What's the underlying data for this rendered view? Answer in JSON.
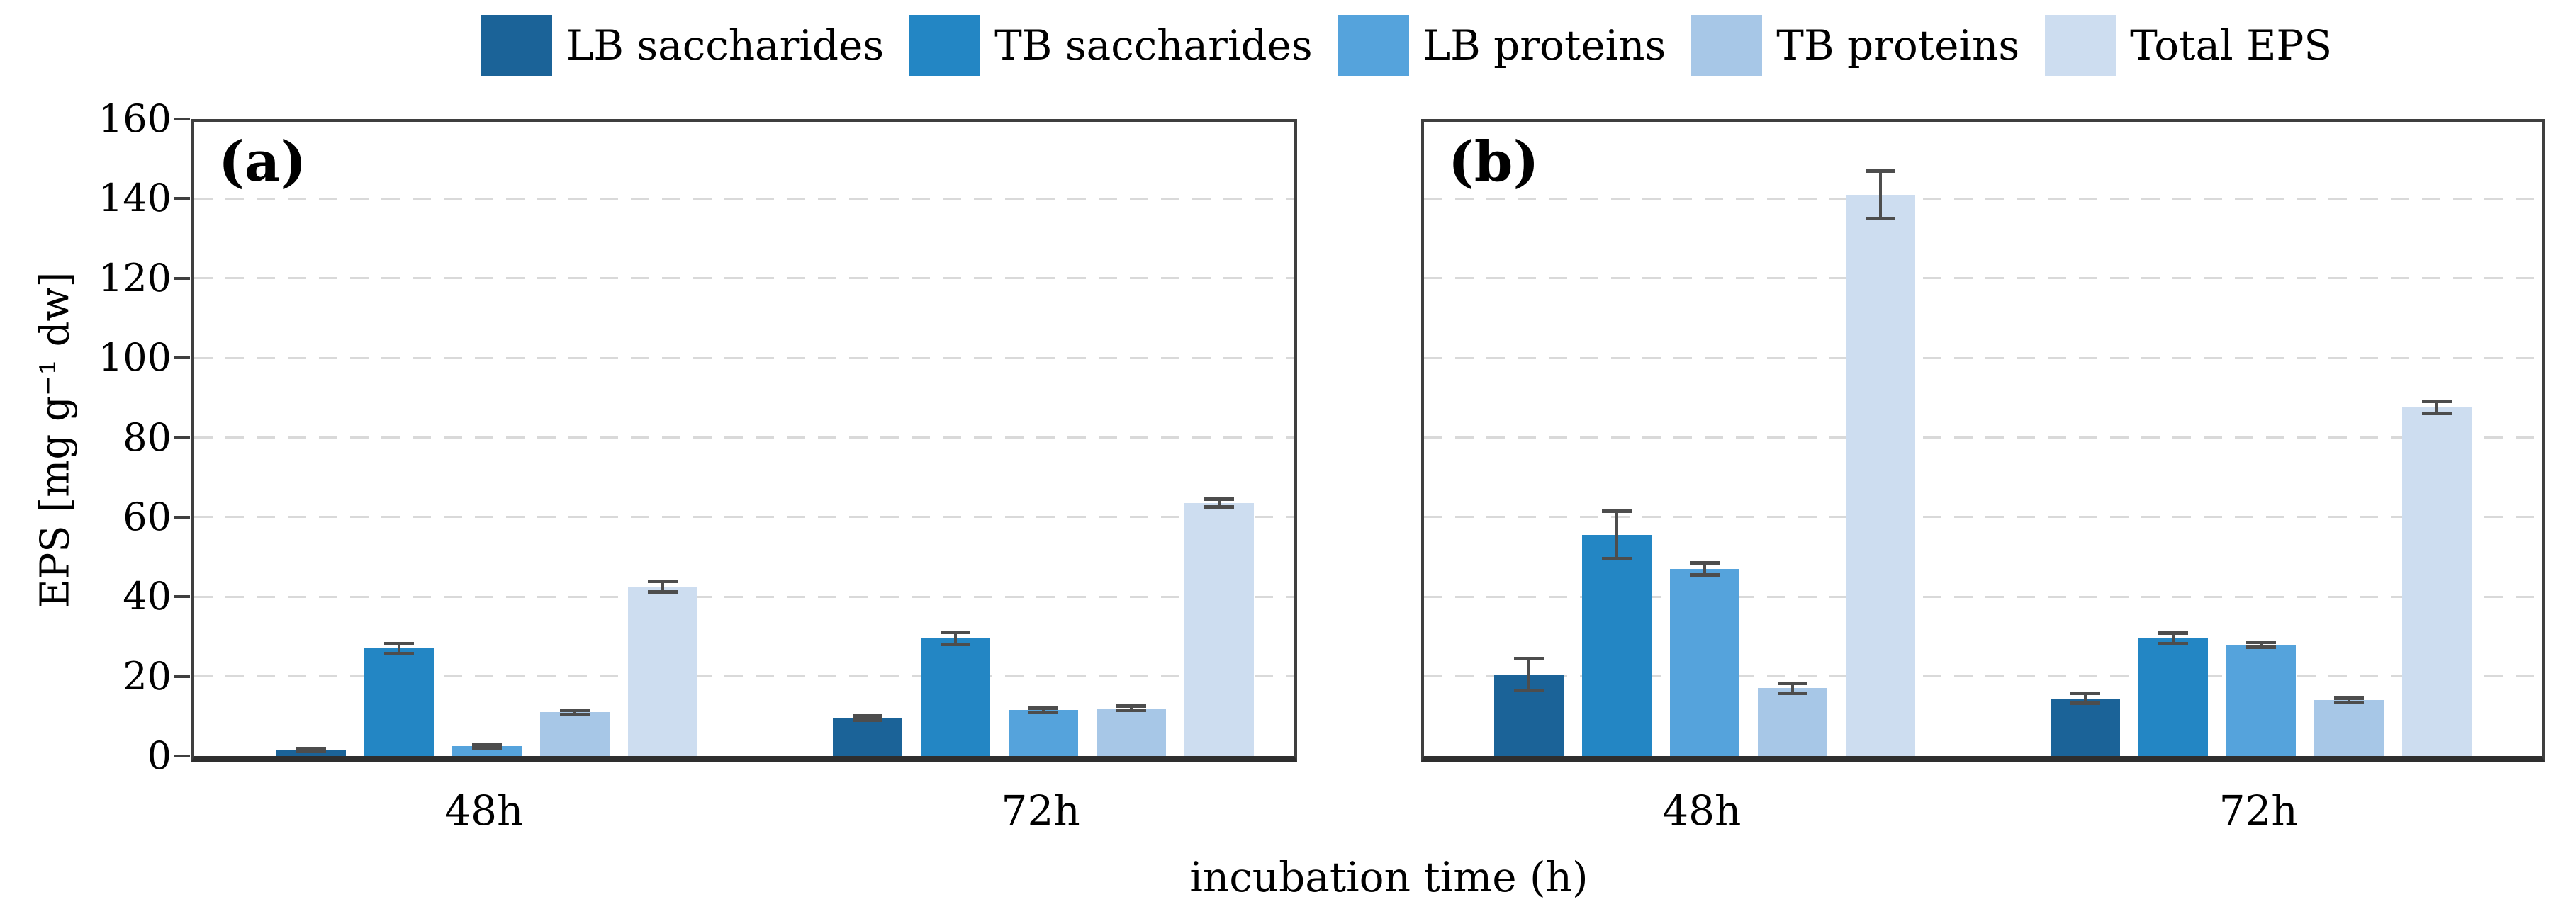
{
  "legend": {
    "items": [
      {
        "label": "LB saccharides",
        "color": "#1B6398"
      },
      {
        "label": "TB saccharides",
        "color": "#2386C4"
      },
      {
        "label": "LB proteins",
        "color": "#55A3DC"
      },
      {
        "label": "TB proteins",
        "color": "#A7C7E7"
      },
      {
        "label": "Total EPS",
        "color": "#CDDDF0"
      }
    ]
  },
  "y_axis": {
    "title": "EPS [mg g⁻¹ dw]",
    "min": 0,
    "max": 160,
    "step": 20,
    "tick_labels": [
      "0",
      "20",
      "40",
      "60",
      "80",
      "100",
      "120",
      "140",
      "160"
    ]
  },
  "x_axis": {
    "title": "incubation time (h)",
    "categories": [
      "48h",
      "72h"
    ]
  },
  "colors": {
    "axis": "#3f3f3f",
    "gridline": "#d9d9d9",
    "error_bar": "#4d4d4d"
  },
  "chart_data": [
    {
      "type": "bar",
      "panel_label": "(a)",
      "categories": [
        "48h",
        "72h"
      ],
      "ylim": [
        0,
        160
      ],
      "grid": true,
      "legend_position": "top",
      "series": [
        {
          "name": "LB saccharides",
          "color": "#1B6398",
          "values": [
            1.5,
            9.5
          ],
          "errors": [
            0.4,
            0.6
          ]
        },
        {
          "name": "TB saccharides",
          "color": "#2386C4",
          "values": [
            27,
            29.5
          ],
          "errors": [
            1.2,
            1.5
          ]
        },
        {
          "name": "LB proteins",
          "color": "#55A3DC",
          "values": [
            2.5,
            11.5
          ],
          "errors": [
            0.5,
            0.6
          ]
        },
        {
          "name": "TB proteins",
          "color": "#A7C7E7",
          "values": [
            11,
            12
          ],
          "errors": [
            0.5,
            0.5
          ]
        },
        {
          "name": "Total EPS",
          "color": "#CDDDF0",
          "values": [
            42.5,
            63.5
          ],
          "errors": [
            1.3,
            1.0
          ]
        }
      ]
    },
    {
      "type": "bar",
      "panel_label": "(b)",
      "categories": [
        "48h",
        "72h"
      ],
      "ylim": [
        0,
        160
      ],
      "grid": true,
      "legend_position": "top",
      "series": [
        {
          "name": "LB saccharides",
          "color": "#1B6398",
          "values": [
            20.5,
            14.5
          ],
          "errors": [
            4.0,
            1.2
          ]
        },
        {
          "name": "TB saccharides",
          "color": "#2386C4",
          "values": [
            55.5,
            29.5
          ],
          "errors": [
            6.0,
            1.3
          ]
        },
        {
          "name": "LB proteins",
          "color": "#55A3DC",
          "values": [
            47,
            28
          ],
          "errors": [
            1.5,
            0.6
          ]
        },
        {
          "name": "TB proteins",
          "color": "#A7C7E7",
          "values": [
            17,
            14
          ],
          "errors": [
            1.2,
            0.5
          ]
        },
        {
          "name": "Total EPS",
          "color": "#CDDDF0",
          "values": [
            141,
            87.5
          ],
          "errors": [
            6.0,
            1.5
          ]
        }
      ]
    }
  ]
}
